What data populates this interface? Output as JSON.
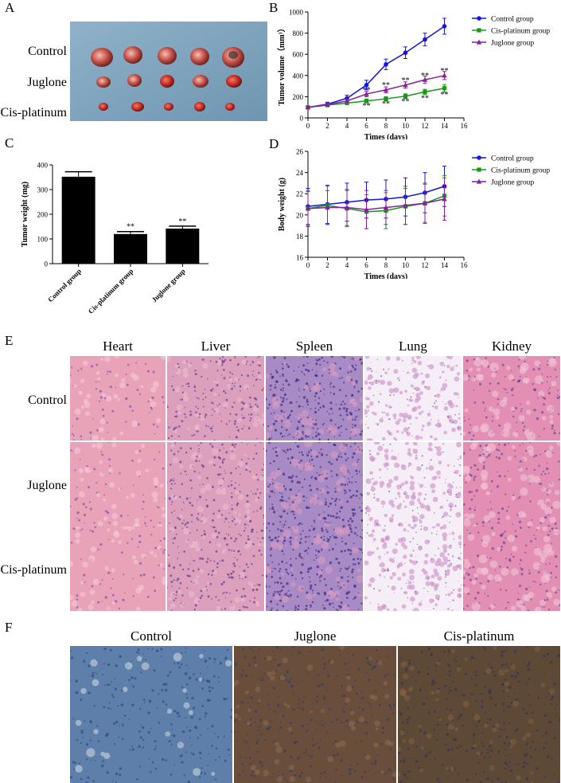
{
  "panels": {
    "A": "A",
    "B": "B",
    "C": "C",
    "D": "D",
    "E": "E",
    "F": "F"
  },
  "panel_a": {
    "rows": [
      "Control",
      "Juglone",
      "Cis-platinum"
    ]
  },
  "chart_data": [
    {
      "type": "line",
      "panel": "B",
      "xlabel": "Times (days)",
      "ylabel": "Tumor volume（mm³）",
      "xlim": [
        0,
        16
      ],
      "ylim": [
        0,
        1000
      ],
      "xticks": [
        0,
        2,
        4,
        6,
        8,
        10,
        12,
        14,
        16
      ],
      "yticks": [
        0,
        200,
        400,
        600,
        800,
        1000
      ],
      "x": [
        0,
        2,
        4,
        6,
        8,
        10,
        12,
        14
      ],
      "legend_position": "top-right",
      "series": [
        {
          "name": "Control group",
          "color": "#1414e6",
          "marker": "circle",
          "values": [
            100,
            130,
            185,
            310,
            505,
            615,
            740,
            865
          ],
          "err": [
            10,
            18,
            30,
            45,
            50,
            55,
            60,
            75
          ]
        },
        {
          "name": "Cis-platinum group",
          "color": "#169a16",
          "marker": "square",
          "values": [
            100,
            120,
            140,
            160,
            180,
            205,
            245,
            280
          ],
          "err": [
            10,
            12,
            15,
            18,
            20,
            22,
            25,
            35
          ]
        },
        {
          "name": "Juglone group",
          "color": "#8a1e9e",
          "marker": "triangle",
          "values": [
            100,
            125,
            160,
            225,
            265,
            310,
            360,
            400
          ],
          "err": [
            10,
            15,
            18,
            25,
            28,
            30,
            35,
            38
          ]
        }
      ],
      "annotations": [
        {
          "x": 6,
          "y": 270,
          "text": "**"
        },
        {
          "x": 8,
          "y": 315,
          "text": "**"
        },
        {
          "x": 10,
          "y": 360,
          "text": "**"
        },
        {
          "x": 12,
          "y": 405,
          "text": "**"
        },
        {
          "x": 14,
          "y": 450,
          "text": "**"
        },
        {
          "x": 6,
          "y": 120,
          "text": "**"
        },
        {
          "x": 8,
          "y": 140,
          "text": "**"
        },
        {
          "x": 10,
          "y": 160,
          "text": "**"
        },
        {
          "x": 12,
          "y": 190,
          "text": "**"
        },
        {
          "x": 14,
          "y": 225,
          "text": "**"
        }
      ]
    },
    {
      "type": "bar",
      "panel": "C",
      "xlabel": "",
      "ylabel": "Tumor weight (mg)",
      "ylim": [
        0,
        400
      ],
      "yticks": [
        0,
        100,
        200,
        300,
        400
      ],
      "categories": [
        "Control group",
        "Cis-platinum group",
        "Juglone group"
      ],
      "values": [
        352,
        120,
        142
      ],
      "err": [
        20,
        10,
        10
      ],
      "labels": [
        "",
        "**",
        "**"
      ]
    },
    {
      "type": "line",
      "panel": "D",
      "xlabel": "Times (days)",
      "ylabel": "Body weight (g)",
      "xlim": [
        0,
        16
      ],
      "ylim": [
        16,
        26
      ],
      "xticks": [
        0,
        2,
        4,
        6,
        8,
        10,
        12,
        14,
        16
      ],
      "yticks": [
        16,
        18,
        20,
        22,
        24,
        26
      ],
      "x": [
        0,
        2,
        4,
        6,
        8,
        10,
        12,
        14
      ],
      "legend_position": "top-right",
      "series": [
        {
          "name": "Control group",
          "color": "#1414e6",
          "marker": "circle",
          "values": [
            20.8,
            21.0,
            21.2,
            21.4,
            21.5,
            21.7,
            22.1,
            22.7
          ],
          "err": [
            1.7,
            1.8,
            1.8,
            1.7,
            1.8,
            1.8,
            1.9,
            1.9
          ]
        },
        {
          "name": "Cis-platinum group",
          "color": "#169a16",
          "marker": "square",
          "values": [
            20.6,
            20.9,
            20.6,
            20.3,
            20.4,
            20.8,
            21.1,
            21.8
          ],
          "err": [
            1.6,
            1.8,
            1.7,
            1.6,
            1.7,
            1.7,
            1.8,
            1.9
          ]
        },
        {
          "name": "Juglone group",
          "color": "#8a1e9e",
          "marker": "triangle",
          "values": [
            20.6,
            20.7,
            20.7,
            20.5,
            20.7,
            20.9,
            21.1,
            21.5
          ],
          "err": [
            1.7,
            1.6,
            1.7,
            1.8,
            1.6,
            1.8,
            1.9,
            2.0
          ]
        }
      ]
    }
  ],
  "panel_e": {
    "columns": [
      "Heart",
      "Liver",
      "Spleen",
      "Lung",
      "Kidney"
    ],
    "rows": [
      "Control",
      "Juglone",
      "Cis-platinum"
    ]
  },
  "panel_f": {
    "columns": [
      "Control",
      "Juglone",
      "Cis-platinum"
    ]
  }
}
